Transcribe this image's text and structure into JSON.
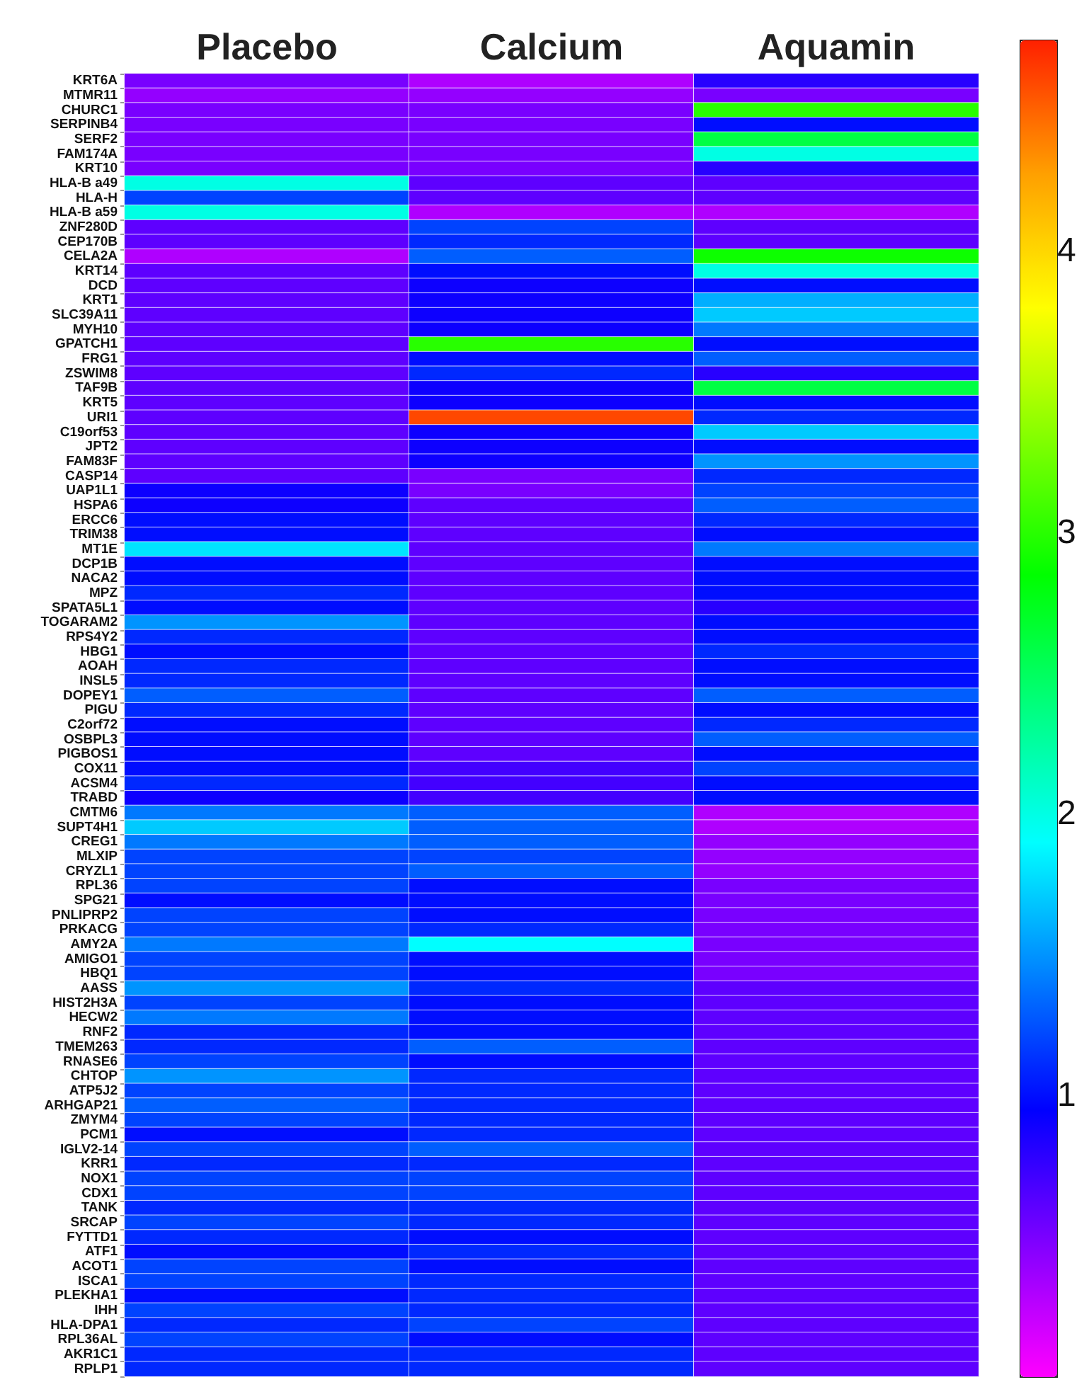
{
  "chart_data": {
    "type": "heatmap",
    "categories": [
      "Placebo",
      "Calcium",
      "Aquamin"
    ],
    "y_categories": [
      "KRT6A",
      "MTMR11",
      "CHURC1",
      "SERPINB4",
      "SERF2",
      "FAM174A",
      "KRT10",
      "HLA-B a49",
      "HLA-H",
      "HLA-B a59",
      "ZNF280D",
      "CEP170B",
      "CELA2A",
      "KRT14",
      "DCD",
      "KRT1",
      "SLC39A11",
      "MYH10",
      "GPATCH1",
      "FRG1",
      "ZSWIM8",
      "TAF9B",
      "KRT5",
      "URI1",
      "C19orf53",
      "JPT2",
      "FAM83F",
      "CASP14",
      "UAP1L1",
      "HSPA6",
      "ERCC6",
      "TRIM38",
      "MT1E",
      "DCP1B",
      "NACA2",
      "MPZ",
      "SPATA5L1",
      "TOGARAM2",
      "RPS4Y2",
      "HBG1",
      "AOAH",
      "INSL5",
      "DOPEY1",
      "PIGU",
      "C2orf72",
      "OSBPL3",
      "PIGBOS1",
      "COX11",
      "ACSM4",
      "TRABD",
      "CMTM6",
      "SUPT4H1",
      "CREG1",
      "MLXIP",
      "CRYZL1",
      "RPL36",
      "SPG21",
      "PNLIPRP2",
      "PRKACG",
      "AMY2A",
      "AMIGO1",
      "HBQ1",
      "AASS",
      "HIST2H3A",
      "HECW2",
      "RNF2",
      "TMEM263",
      "RNASE6",
      "CHTOP",
      "ATP5J2",
      "ARHGAP21",
      "ZMYM4",
      "PCM1",
      "IGLV2-14",
      "KRR1",
      "NOX1",
      "CDX1",
      "TANK",
      "SRCAP",
      "FYTTD1",
      "ATF1",
      "ACOT1",
      "ISCA1",
      "PLEKHA1",
      "IHH",
      "HLA-DPA1",
      "RPL36AL",
      "AKR1C1",
      "RPLP1"
    ],
    "cells": [
      [
        0.5,
        0.3,
        0.8
      ],
      [
        0.4,
        0.4,
        0.5
      ],
      [
        0.5,
        0.5,
        3.0
      ],
      [
        0.5,
        0.5,
        1.0
      ],
      [
        0.5,
        0.5,
        2.6
      ],
      [
        0.5,
        0.5,
        2.0
      ],
      [
        0.5,
        0.5,
        0.8
      ],
      [
        2.0,
        0.6,
        0.6
      ],
      [
        1.2,
        0.6,
        0.6
      ],
      [
        2.0,
        0.3,
        0.3
      ],
      [
        0.6,
        1.2,
        0.6
      ],
      [
        0.6,
        1.1,
        0.6
      ],
      [
        0.3,
        1.3,
        2.9
      ],
      [
        0.6,
        1.0,
        2.0
      ],
      [
        0.6,
        0.9,
        1.0
      ],
      [
        0.6,
        0.9,
        1.6
      ],
      [
        0.6,
        0.9,
        1.7
      ],
      [
        0.6,
        0.9,
        1.4
      ],
      [
        0.6,
        3.0,
        1.0
      ],
      [
        0.6,
        1.0,
        1.3
      ],
      [
        0.6,
        1.1,
        0.8
      ],
      [
        0.6,
        0.9,
        2.6
      ],
      [
        0.6,
        0.9,
        1.0
      ],
      [
        0.6,
        4.6,
        1.1
      ],
      [
        0.6,
        0.9,
        1.7
      ],
      [
        0.6,
        0.9,
        1.0
      ],
      [
        0.6,
        0.9,
        1.5
      ],
      [
        0.6,
        0.5,
        1.1
      ],
      [
        0.9,
        0.5,
        1.2
      ],
      [
        0.9,
        0.6,
        1.3
      ],
      [
        1.0,
        0.6,
        1.1
      ],
      [
        1.0,
        0.6,
        1.0
      ],
      [
        1.8,
        0.6,
        1.4
      ],
      [
        1.0,
        0.6,
        1.0
      ],
      [
        1.0,
        0.6,
        1.0
      ],
      [
        1.1,
        0.6,
        1.0
      ],
      [
        1.0,
        0.6,
        0.8
      ],
      [
        1.5,
        0.6,
        1.0
      ],
      [
        1.1,
        0.6,
        1.0
      ],
      [
        1.0,
        0.6,
        1.1
      ],
      [
        1.1,
        0.6,
        1.0
      ],
      [
        1.1,
        0.6,
        1.0
      ],
      [
        1.3,
        0.6,
        1.3
      ],
      [
        1.1,
        0.6,
        1.0
      ],
      [
        1.0,
        0.6,
        1.1
      ],
      [
        1.0,
        0.6,
        1.3
      ],
      [
        1.0,
        0.6,
        1.0
      ],
      [
        1.0,
        0.7,
        1.2
      ],
      [
        1.1,
        0.7,
        1.0
      ],
      [
        0.9,
        0.7,
        1.0
      ],
      [
        1.4,
        1.3,
        0.3
      ],
      [
        1.7,
        1.3,
        0.3
      ],
      [
        1.4,
        1.3,
        0.4
      ],
      [
        1.2,
        1.2,
        0.4
      ],
      [
        1.2,
        1.3,
        0.4
      ],
      [
        1.2,
        1.0,
        0.5
      ],
      [
        1.0,
        1.0,
        0.5
      ],
      [
        1.2,
        1.0,
        0.5
      ],
      [
        1.2,
        1.1,
        0.5
      ],
      [
        1.4,
        1.9,
        0.5
      ],
      [
        1.2,
        1.0,
        0.5
      ],
      [
        1.2,
        1.0,
        0.5
      ],
      [
        1.5,
        1.1,
        0.6
      ],
      [
        1.2,
        1.0,
        0.6
      ],
      [
        1.4,
        1.0,
        0.6
      ],
      [
        1.1,
        1.0,
        0.6
      ],
      [
        1.1,
        1.3,
        0.6
      ],
      [
        1.2,
        1.0,
        0.6
      ],
      [
        1.5,
        1.1,
        0.6
      ],
      [
        1.2,
        1.1,
        0.6
      ],
      [
        1.3,
        1.1,
        0.6
      ],
      [
        1.2,
        1.1,
        0.6
      ],
      [
        1.0,
        1.1,
        0.6
      ],
      [
        1.2,
        1.3,
        0.6
      ],
      [
        1.1,
        1.1,
        0.6
      ],
      [
        1.2,
        1.2,
        0.6
      ],
      [
        1.2,
        1.2,
        0.6
      ],
      [
        1.1,
        1.1,
        0.6
      ],
      [
        1.2,
        1.1,
        0.6
      ],
      [
        1.1,
        1.0,
        0.6
      ],
      [
        1.0,
        1.1,
        0.6
      ],
      [
        1.2,
        1.0,
        0.6
      ],
      [
        1.2,
        1.1,
        0.6
      ],
      [
        1.0,
        1.1,
        0.6
      ],
      [
        1.2,
        1.1,
        0.6
      ],
      [
        1.1,
        1.2,
        0.6
      ],
      [
        1.2,
        1.0,
        0.6
      ],
      [
        1.1,
        1.1,
        0.6
      ],
      [
        1.1,
        1.1,
        0.6
      ]
    ],
    "clim": [
      0,
      4.75
    ],
    "cticks": [
      1,
      2,
      3,
      4
    ]
  }
}
